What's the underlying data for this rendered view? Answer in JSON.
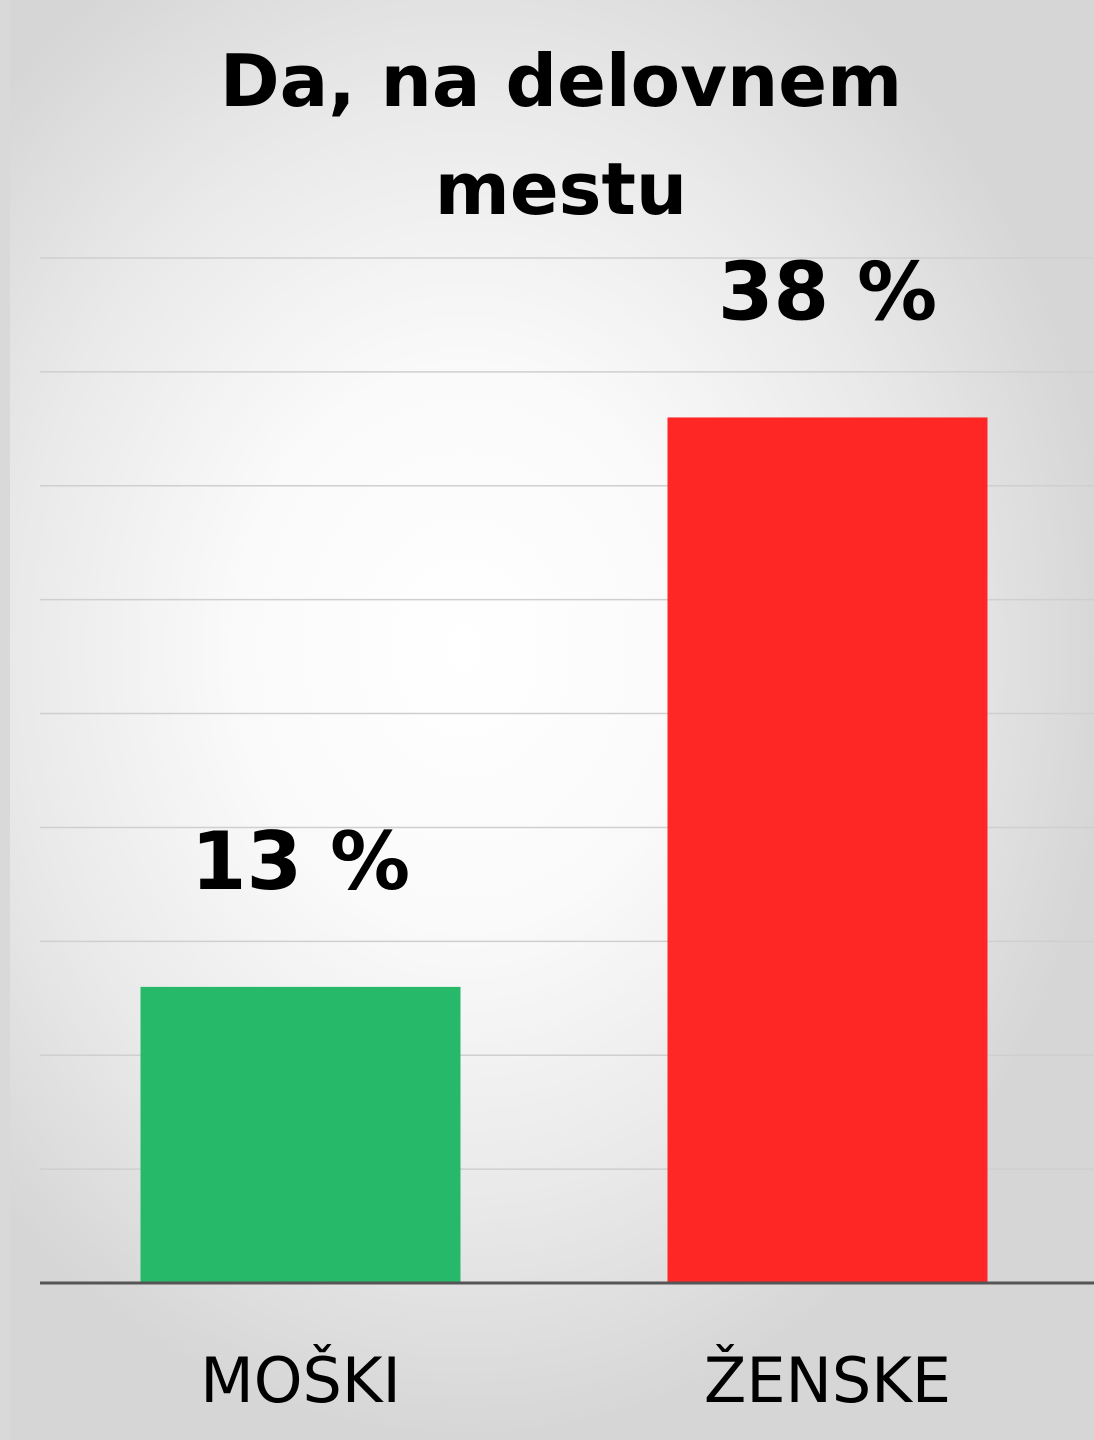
{
  "chart_data": {
    "type": "bar",
    "title_lines": [
      "Da, na delovnem",
      "mestu"
    ],
    "categories": [
      "MOŠKI",
      "ŽENSKE"
    ],
    "values": [
      13,
      38
    ],
    "data_labels": [
      "13 %",
      "38 %"
    ],
    "bar_colors": [
      "#27b96a",
      "#ff2626"
    ],
    "ylim": [
      0,
      45
    ],
    "grid": true,
    "legend": "none"
  }
}
